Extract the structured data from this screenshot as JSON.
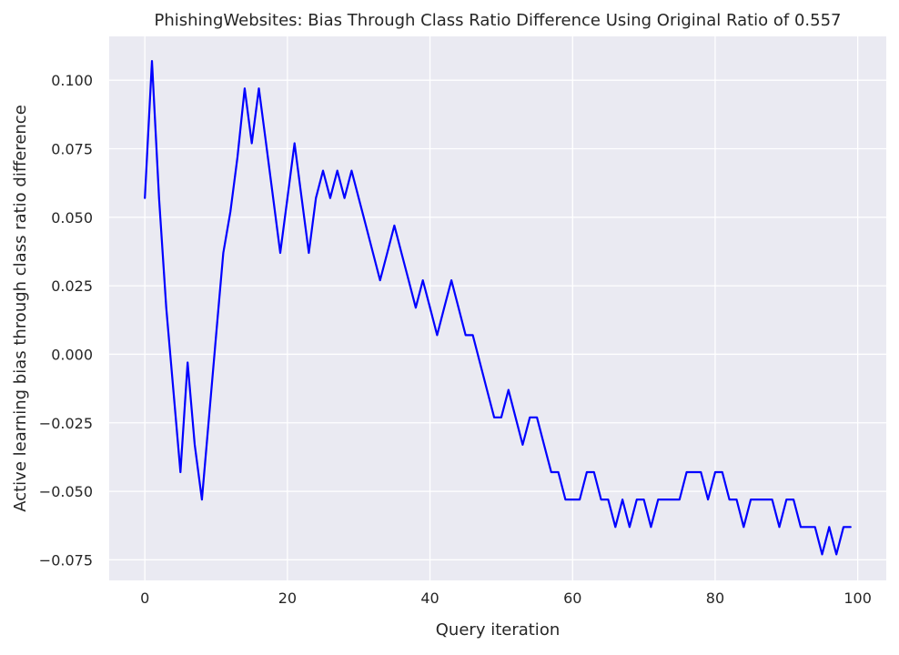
{
  "chart_data": {
    "type": "line",
    "title": "PhishingWebsites: Bias Through Class Ratio Difference Using Original Ratio of 0.557",
    "xlabel": "Query iteration",
    "ylabel": "Active learning bias through class ratio difference",
    "xlim": [
      -5,
      104
    ],
    "ylim": [
      -0.0825,
      0.116
    ],
    "xticks": [
      0,
      20,
      40,
      60,
      80,
      100
    ],
    "xtick_labels": [
      "0",
      "20",
      "40",
      "60",
      "80",
      "100"
    ],
    "yticks": [
      -0.075,
      -0.05,
      -0.025,
      0.0,
      0.025,
      0.05,
      0.075,
      0.1
    ],
    "ytick_labels": [
      "−0.075",
      "−0.050",
      "−0.025",
      "0.000",
      "0.025",
      "0.050",
      "0.075",
      "0.100"
    ],
    "grid": true,
    "background_color": "#eaeaf2",
    "grid_color": "#ffffff",
    "series": [
      {
        "color": "#0000ff",
        "x": [
          0,
          1,
          2,
          3,
          4,
          5,
          6,
          7,
          8,
          9,
          10,
          11,
          12,
          13,
          14,
          15,
          16,
          17,
          18,
          19,
          20,
          21,
          22,
          23,
          24,
          25,
          26,
          27,
          28,
          29,
          30,
          31,
          32,
          33,
          34,
          35,
          36,
          37,
          38,
          39,
          40,
          41,
          42,
          43,
          44,
          45,
          46,
          47,
          48,
          49,
          50,
          51,
          52,
          53,
          54,
          55,
          56,
          57,
          58,
          59,
          60,
          61,
          62,
          63,
          64,
          65,
          66,
          67,
          68,
          69,
          70,
          71,
          72,
          73,
          74,
          75,
          76,
          77,
          78,
          79,
          80,
          81,
          82,
          83,
          84,
          85,
          86,
          87,
          88,
          89,
          90,
          91,
          92,
          93,
          94,
          95,
          96,
          97,
          98,
          99
        ],
        "y": [
          0.057,
          0.107,
          0.057,
          0.017,
          -0.013,
          -0.043,
          -0.003,
          -0.033,
          -0.053,
          -0.023,
          0.007,
          0.037,
          0.052,
          0.072,
          0.097,
          0.077,
          0.097,
          0.077,
          0.057,
          0.037,
          0.057,
          0.077,
          0.057,
          0.037,
          0.057,
          0.067,
          0.057,
          0.067,
          0.057,
          0.067,
          0.057,
          0.047,
          0.037,
          0.027,
          0.037,
          0.047,
          0.037,
          0.027,
          0.017,
          0.027,
          0.017,
          0.007,
          0.017,
          0.027,
          0.017,
          0.007,
          0.007,
          -0.003,
          -0.013,
          -0.023,
          -0.023,
          -0.013,
          -0.023,
          -0.033,
          -0.023,
          -0.023,
          -0.033,
          -0.043,
          -0.043,
          -0.053,
          -0.053,
          -0.053,
          -0.043,
          -0.043,
          -0.053,
          -0.053,
          -0.063,
          -0.053,
          -0.063,
          -0.053,
          -0.053,
          -0.063,
          -0.053,
          -0.053,
          -0.053,
          -0.053,
          -0.043,
          -0.043,
          -0.043,
          -0.053,
          -0.043,
          -0.043,
          -0.053,
          -0.053,
          -0.063,
          -0.053,
          -0.053,
          -0.053,
          -0.053,
          -0.063,
          -0.053,
          -0.053,
          -0.063,
          -0.063,
          -0.063,
          -0.073,
          -0.063,
          -0.073,
          -0.063,
          -0.063
        ]
      }
    ]
  }
}
